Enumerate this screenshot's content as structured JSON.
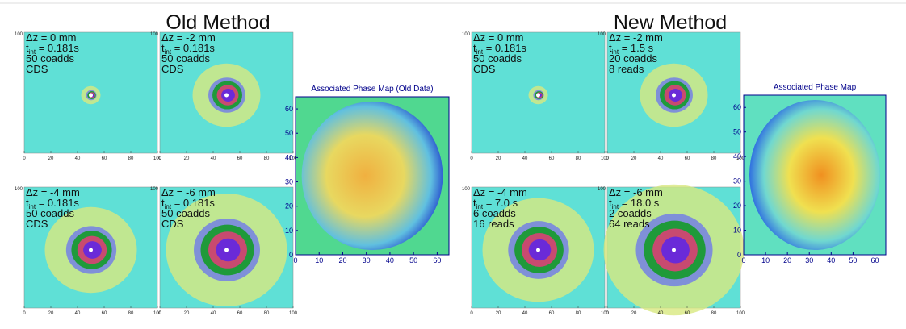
{
  "sections": [
    {
      "title": "Old Method",
      "panels": [
        {
          "lines": [
            "Δz = 0 mm",
            {
              "base": "t",
              "sub": "int",
              "text": " = 0.181s"
            },
            "50 coadds",
            "CDS"
          ]
        },
        {
          "lines": [
            "Δz = -2 mm",
            {
              "base": "t",
              "sub": "int",
              "text": " = 0.181s"
            },
            "50 coadds",
            "CDS"
          ]
        },
        {
          "lines": [
            "Δz = -4 mm",
            {
              "base": "t",
              "sub": "int",
              "text": " = 0.181s"
            },
            "50 coadds",
            "CDS"
          ]
        },
        {
          "lines": [
            "Δz = -6 mm",
            {
              "base": "t",
              "sub": "int",
              "text": " = 0.181s"
            },
            "50 coadds",
            "CDS"
          ]
        }
      ],
      "phase_map": {
        "title": "Associated Phase Map (Old Data)",
        "lim": [
          0,
          65
        ],
        "xticks": [
          0,
          10,
          20,
          30,
          40,
          50,
          60
        ],
        "yticks": [
          0,
          10,
          20,
          30,
          40,
          50,
          60
        ]
      }
    },
    {
      "title": "New Method",
      "panels": [
        {
          "lines": [
            "Δz = 0 mm",
            {
              "base": "t",
              "sub": "int",
              "text": " = 0.181s"
            },
            "50 coadds",
            "CDS"
          ]
        },
        {
          "lines": [
            "Δz = -2 mm",
            {
              "base": "t",
              "sub": "int",
              "text": " = 1.5 s"
            },
            "20 coadds",
            "8 reads"
          ]
        },
        {
          "lines": [
            "Δz = -4 mm",
            {
              "base": "t",
              "sub": "int",
              "text": " = 7.0 s"
            },
            "6 coadds",
            "16 reads"
          ]
        },
        {
          "lines": [
            "Δz = -6 mm",
            {
              "base": "t",
              "sub": "int",
              "text": " = 18.0 s"
            },
            "2 coadds",
            "64 reads"
          ]
        }
      ],
      "phase_map": {
        "title": "Associated Phase Map",
        "lim": [
          0,
          65
        ],
        "xticks": [
          0,
          10,
          20,
          30,
          40,
          50,
          60
        ],
        "yticks": [
          0,
          10,
          20,
          30,
          40,
          50,
          60
        ]
      }
    }
  ],
  "panel_ticks": [
    0,
    20,
    40,
    60,
    80,
    100
  ]
}
